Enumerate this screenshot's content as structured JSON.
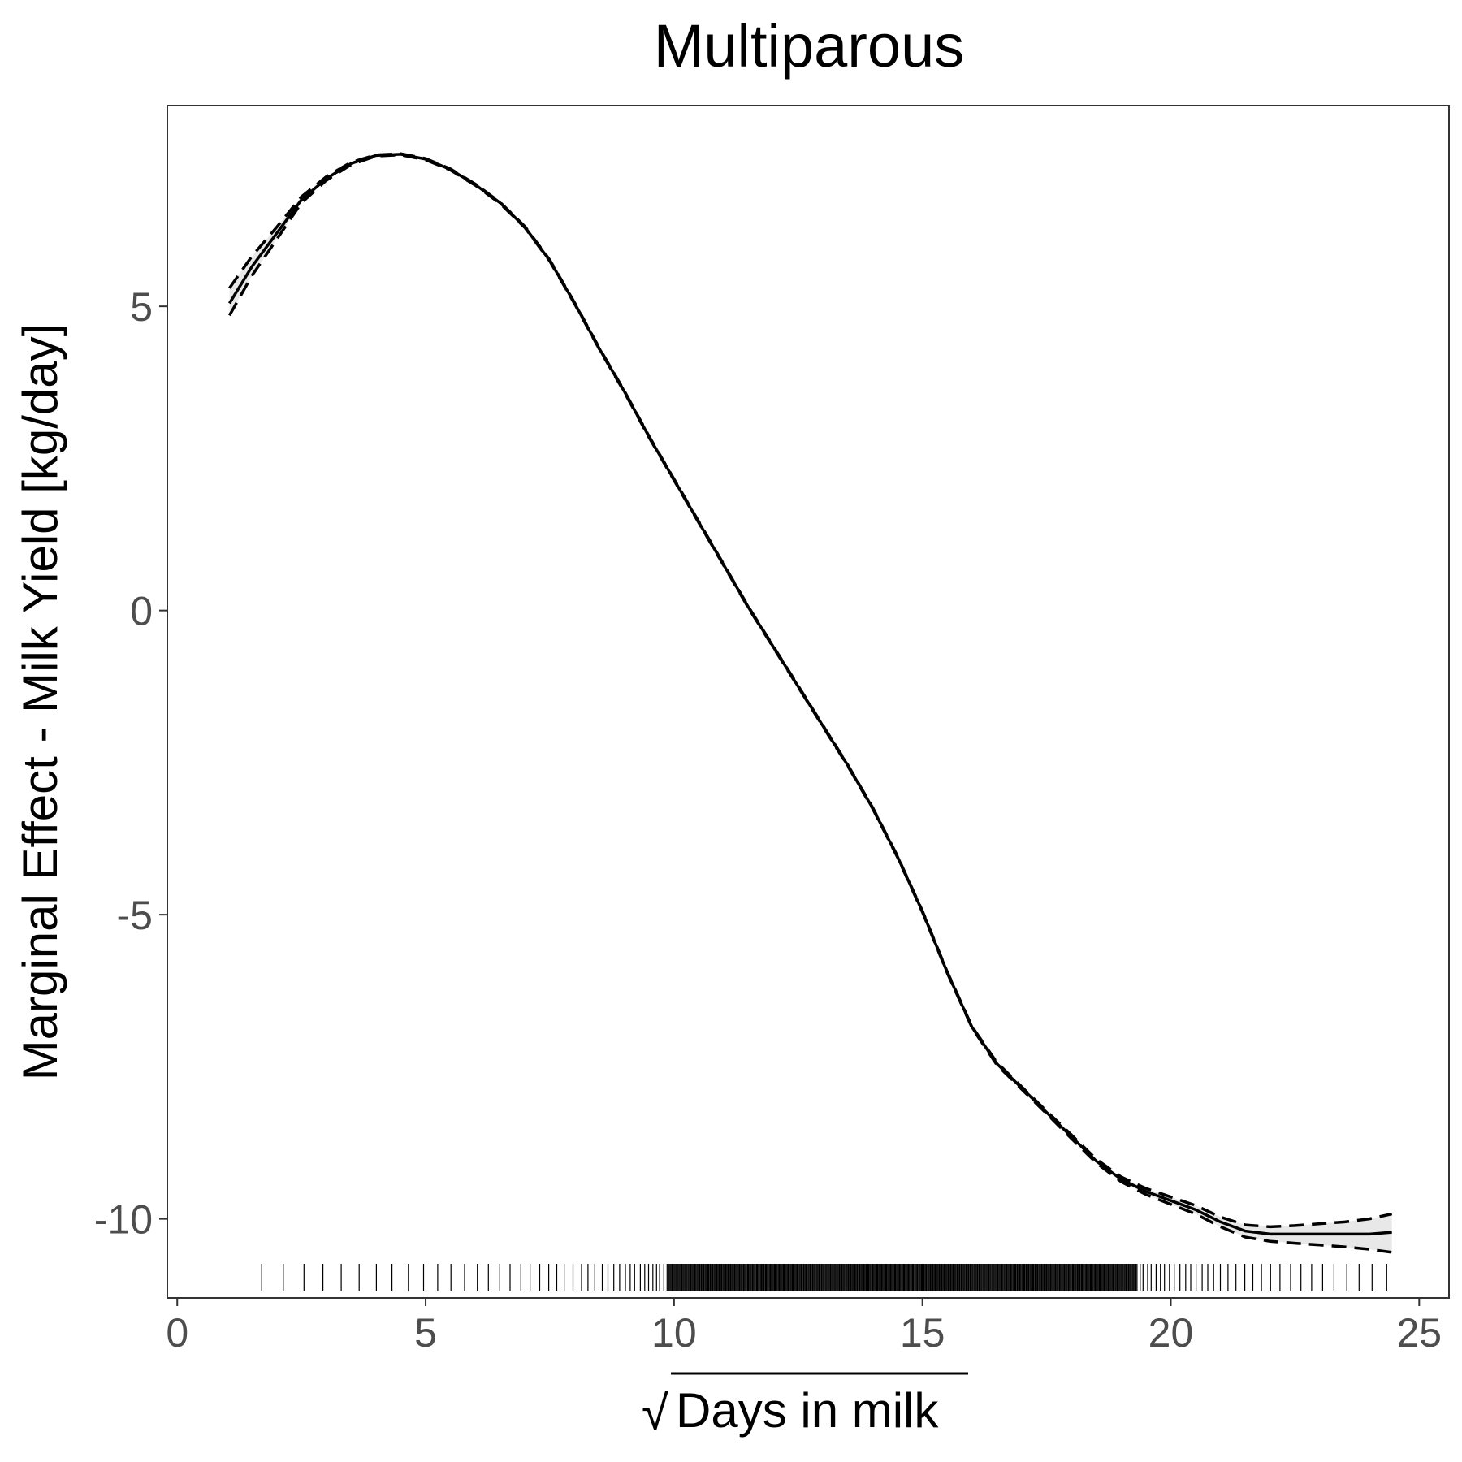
{
  "chart_data": {
    "type": "line",
    "title": "Multiparous",
    "xlabel": "Days in milk",
    "xlabel_prefix": "√",
    "ylabel": "Marginal Effect - Milk Yield [kg/day]",
    "xlim": [
      -0.2,
      25.6
    ],
    "ylim": [
      -11.3,
      8.3
    ],
    "x_ticks": [
      0,
      5,
      10,
      15,
      20,
      25
    ],
    "y_ticks": [
      -10,
      -5,
      0,
      5
    ],
    "grid": false,
    "legend": "none",
    "series": [
      {
        "style": "solid",
        "x": [
          1.05,
          1.5,
          2.0,
          2.5,
          3.0,
          3.5,
          4.0,
          4.5,
          5.0,
          5.5,
          6.0,
          6.5,
          7.0,
          7.5,
          8.0,
          8.5,
          9.0,
          9.5,
          10.0,
          10.5,
          11.0,
          11.5,
          12.0,
          12.5,
          13.0,
          13.5,
          14.0,
          14.5,
          15.0,
          15.5,
          16.0,
          16.5,
          17.0,
          17.5,
          18.0,
          18.5,
          19.0,
          19.5,
          20.0,
          20.5,
          21.0,
          21.5,
          22.0,
          22.5,
          23.0,
          23.5,
          24.0,
          24.45
        ],
        "y": [
          5.05,
          5.65,
          6.2,
          6.75,
          7.1,
          7.35,
          7.48,
          7.5,
          7.42,
          7.25,
          7.0,
          6.7,
          6.3,
          5.75,
          5.05,
          4.3,
          3.6,
          2.85,
          2.15,
          1.45,
          0.75,
          0.05,
          -0.6,
          -1.25,
          -1.9,
          -2.55,
          -3.25,
          -4.05,
          -4.95,
          -5.95,
          -6.85,
          -7.45,
          -7.85,
          -8.25,
          -8.65,
          -9.05,
          -9.35,
          -9.55,
          -9.7,
          -9.85,
          -10.05,
          -10.2,
          -10.25,
          -10.25,
          -10.25,
          -10.25,
          -10.25,
          -10.22
        ],
        "lower": [
          4.85,
          5.5,
          6.1,
          6.7,
          7.07,
          7.33,
          7.47,
          7.49,
          7.41,
          7.24,
          6.99,
          6.69,
          6.29,
          5.74,
          5.04,
          4.29,
          3.59,
          2.84,
          2.14,
          1.44,
          0.74,
          0.04,
          -0.61,
          -1.26,
          -1.91,
          -2.56,
          -3.26,
          -4.06,
          -4.96,
          -5.96,
          -6.86,
          -7.47,
          -7.87,
          -8.27,
          -8.68,
          -9.08,
          -9.39,
          -9.6,
          -9.76,
          -9.92,
          -10.13,
          -10.3,
          -10.37,
          -10.4,
          -10.43,
          -10.46,
          -10.5,
          -10.55
        ],
        "upper": [
          5.3,
          5.82,
          6.3,
          6.8,
          7.13,
          7.37,
          7.49,
          7.51,
          7.43,
          7.26,
          7.01,
          6.71,
          6.31,
          5.76,
          5.06,
          4.31,
          3.61,
          2.86,
          2.16,
          1.46,
          0.76,
          0.06,
          -0.59,
          -1.24,
          -1.89,
          -2.54,
          -3.24,
          -4.04,
          -4.94,
          -5.94,
          -6.84,
          -7.43,
          -7.83,
          -8.23,
          -8.62,
          -9.02,
          -9.31,
          -9.5,
          -9.64,
          -9.78,
          -9.97,
          -10.1,
          -10.13,
          -10.11,
          -10.08,
          -10.05,
          -10.0,
          -9.92
        ]
      }
    ],
    "rug": {
      "min": 1.7,
      "max": 24.4,
      "dense_range": [
        9.8,
        19.3
      ]
    }
  }
}
